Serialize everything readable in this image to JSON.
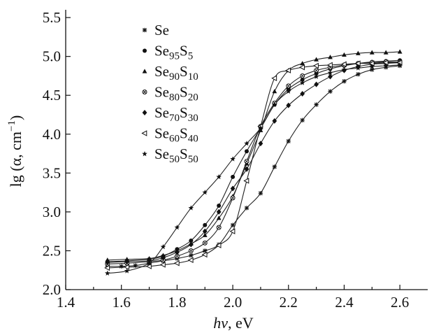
{
  "chart_data": {
    "type": "line",
    "title": "",
    "xlabel_italic": "hν",
    "xlabel_rest": ", eV",
    "ylabel_main": "lg (α, cm",
    "ylabel_sup": "−1",
    "ylabel_close": ")",
    "xlim": [
      1.4,
      2.7
    ],
    "ylim": [
      2.0,
      5.6
    ],
    "xticks": [
      "1.4",
      "1.6",
      "1.8",
      "2.0",
      "2.2",
      "2.4",
      "2.6"
    ],
    "yticks": [
      "2.0",
      "2.5",
      "3.0",
      "3.5",
      "4.0",
      "4.5",
      "5.0",
      "5.5"
    ],
    "legend_position": "upper-left",
    "grid": false,
    "series": [
      {
        "name": "Se",
        "name_parts": [
          "Se"
        ],
        "marker": "asterisk",
        "points": [
          [
            1.55,
            2.3
          ],
          [
            1.6,
            2.3
          ],
          [
            1.65,
            2.31
          ],
          [
            1.7,
            2.34
          ],
          [
            1.75,
            2.37
          ],
          [
            1.8,
            2.4
          ],
          [
            1.85,
            2.44
          ],
          [
            1.9,
            2.5
          ],
          [
            1.95,
            2.58
          ],
          [
            2.0,
            2.83
          ],
          [
            2.05,
            3.05
          ],
          [
            2.1,
            3.24
          ],
          [
            2.15,
            3.58
          ],
          [
            2.2,
            3.91
          ],
          [
            2.25,
            4.18
          ],
          [
            2.3,
            4.38
          ],
          [
            2.35,
            4.55
          ],
          [
            2.4,
            4.68
          ],
          [
            2.45,
            4.77
          ],
          [
            2.5,
            4.83
          ],
          [
            2.55,
            4.86
          ],
          [
            2.6,
            4.88
          ]
        ]
      },
      {
        "name": "Se95S5",
        "name_parts": [
          "Se",
          "95",
          "S",
          "5"
        ],
        "marker": "circle",
        "points": [
          [
            1.55,
            2.36
          ],
          [
            1.62,
            2.37
          ],
          [
            1.7,
            2.39
          ],
          [
            1.75,
            2.43
          ],
          [
            1.8,
            2.52
          ],
          [
            1.85,
            2.63
          ],
          [
            1.9,
            2.83
          ],
          [
            1.95,
            3.08
          ],
          [
            2.0,
            3.45
          ],
          [
            2.05,
            3.78
          ],
          [
            2.1,
            4.08
          ],
          [
            2.15,
            4.38
          ],
          [
            2.2,
            4.58
          ],
          [
            2.25,
            4.7
          ],
          [
            2.3,
            4.78
          ],
          [
            2.35,
            4.84
          ],
          [
            2.4,
            4.88
          ],
          [
            2.45,
            4.91
          ],
          [
            2.5,
            4.93
          ],
          [
            2.55,
            4.94
          ],
          [
            2.6,
            4.95
          ]
        ]
      },
      {
        "name": "Se90S10",
        "name_parts": [
          "Se",
          "90",
          "S",
          "10"
        ],
        "marker": "triangle",
        "points": [
          [
            1.55,
            2.38
          ],
          [
            1.62,
            2.39
          ],
          [
            1.7,
            2.4
          ],
          [
            1.75,
            2.44
          ],
          [
            1.8,
            2.5
          ],
          [
            1.85,
            2.59
          ],
          [
            1.9,
            2.7
          ],
          [
            1.95,
            2.92
          ],
          [
            2.0,
            3.2
          ],
          [
            2.05,
            3.62
          ],
          [
            2.1,
            4.05
          ],
          [
            2.15,
            4.55
          ],
          [
            2.2,
            4.82
          ],
          [
            2.25,
            4.91
          ],
          [
            2.3,
            4.96
          ],
          [
            2.35,
            4.99
          ],
          [
            2.4,
            5.02
          ],
          [
            2.45,
            5.04
          ],
          [
            2.5,
            5.05
          ],
          [
            2.55,
            5.05
          ],
          [
            2.6,
            5.06
          ]
        ]
      },
      {
        "name": "Se80S20",
        "name_parts": [
          "Se",
          "80",
          "S",
          "20"
        ],
        "marker": "circle-x",
        "points": [
          [
            1.55,
            2.33
          ],
          [
            1.62,
            2.34
          ],
          [
            1.7,
            2.36
          ],
          [
            1.75,
            2.38
          ],
          [
            1.8,
            2.43
          ],
          [
            1.85,
            2.5
          ],
          [
            1.9,
            2.6
          ],
          [
            1.95,
            2.8
          ],
          [
            2.0,
            3.18
          ],
          [
            2.05,
            3.65
          ],
          [
            2.1,
            4.1
          ],
          [
            2.15,
            4.4
          ],
          [
            2.2,
            4.62
          ],
          [
            2.25,
            4.75
          ],
          [
            2.3,
            4.82
          ],
          [
            2.35,
            4.86
          ],
          [
            2.4,
            4.89
          ],
          [
            2.45,
            4.91
          ],
          [
            2.5,
            4.92
          ],
          [
            2.55,
            4.93
          ],
          [
            2.6,
            4.93
          ]
        ]
      },
      {
        "name": "Se70S30",
        "name_parts": [
          "Se",
          "70",
          "S",
          "30"
        ],
        "marker": "diamond",
        "points": [
          [
            1.55,
            2.35
          ],
          [
            1.62,
            2.36
          ],
          [
            1.7,
            2.37
          ],
          [
            1.75,
            2.41
          ],
          [
            1.8,
            2.48
          ],
          [
            1.85,
            2.58
          ],
          [
            1.9,
            2.75
          ],
          [
            1.95,
            3.0
          ],
          [
            2.0,
            3.3
          ],
          [
            2.05,
            3.55
          ],
          [
            2.1,
            3.88
          ],
          [
            2.15,
            4.17
          ],
          [
            2.2,
            4.37
          ],
          [
            2.25,
            4.52
          ],
          [
            2.3,
            4.64
          ],
          [
            2.35,
            4.74
          ],
          [
            2.4,
            4.82
          ],
          [
            2.45,
            4.87
          ],
          [
            2.5,
            4.9
          ],
          [
            2.55,
            4.91
          ],
          [
            2.6,
            4.92
          ]
        ]
      },
      {
        "name": "Se60S40",
        "name_parts": [
          "Se",
          "60",
          "S",
          "40"
        ],
        "marker": "triangle-left-open",
        "points": [
          [
            1.55,
            2.28
          ],
          [
            1.62,
            2.29
          ],
          [
            1.7,
            2.3
          ],
          [
            1.75,
            2.32
          ],
          [
            1.8,
            2.34
          ],
          [
            1.85,
            2.38
          ],
          [
            1.9,
            2.45
          ],
          [
            1.95,
            2.57
          ],
          [
            2.0,
            2.75
          ],
          [
            2.05,
            3.4
          ],
          [
            2.1,
            4.1
          ],
          [
            2.15,
            4.72
          ],
          [
            2.2,
            4.82
          ],
          [
            2.25,
            4.86
          ],
          [
            2.3,
            4.88
          ],
          [
            2.35,
            4.89
          ],
          [
            2.4,
            4.9
          ],
          [
            2.45,
            4.91
          ],
          [
            2.5,
            4.91
          ],
          [
            2.55,
            4.92
          ],
          [
            2.6,
            4.92
          ]
        ]
      },
      {
        "name": "Se50S50",
        "name_parts": [
          "Se",
          "50",
          "S",
          "50"
        ],
        "marker": "star",
        "points": [
          [
            1.55,
            2.21
          ],
          [
            1.62,
            2.24
          ],
          [
            1.7,
            2.34
          ],
          [
            1.75,
            2.55
          ],
          [
            1.8,
            2.8
          ],
          [
            1.85,
            3.05
          ],
          [
            1.9,
            3.25
          ],
          [
            1.95,
            3.45
          ],
          [
            2.0,
            3.68
          ],
          [
            2.05,
            3.88
          ],
          [
            2.1,
            4.08
          ],
          [
            2.15,
            4.38
          ],
          [
            2.2,
            4.55
          ],
          [
            2.25,
            4.66
          ],
          [
            2.3,
            4.74
          ],
          [
            2.35,
            4.79
          ],
          [
            2.4,
            4.83
          ],
          [
            2.45,
            4.85
          ],
          [
            2.5,
            4.87
          ],
          [
            2.55,
            4.88
          ],
          [
            2.6,
            4.89
          ]
        ]
      }
    ]
  }
}
